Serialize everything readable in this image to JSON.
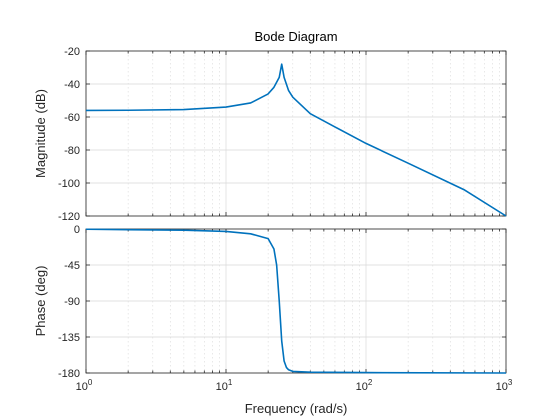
{
  "chart_data": [
    {
      "type": "line",
      "title": "Bode Diagram",
      "xlabel": "",
      "ylabel": "Magnitude (dB)",
      "xscale": "log",
      "xlim": [
        1,
        1000
      ],
      "ylim": [
        -120,
        -20
      ],
      "yticks": [
        -20,
        -40,
        -60,
        -80,
        -100,
        -120
      ],
      "grid": true,
      "series": [
        {
          "color": "#0072bd",
          "x": [
            1,
            2,
            5,
            10,
            15,
            20,
            22,
            24,
            25,
            26,
            28,
            30,
            40,
            60,
            100,
            200,
            500,
            1000
          ],
          "y": [
            -56,
            -55.9,
            -55.5,
            -54,
            -51.5,
            -46,
            -42,
            -36,
            -28,
            -36,
            -44,
            -48,
            -58,
            -66,
            -76,
            -88,
            -104,
            -120
          ]
        }
      ]
    },
    {
      "type": "line",
      "title": "",
      "xlabel": "Frequency  (rad/s)",
      "ylabel": "Phase (deg)",
      "xscale": "log",
      "xlim": [
        1,
        1000
      ],
      "ylim": [
        -180,
        0
      ],
      "yticks": [
        0,
        -45,
        -90,
        -135,
        -180
      ],
      "xtick_labels": [
        {
          "base": "10",
          "exp": "0",
          "value": 1
        },
        {
          "base": "10",
          "exp": "1",
          "value": 10
        },
        {
          "base": "10",
          "exp": "2",
          "value": 100
        },
        {
          "base": "10",
          "exp": "3",
          "value": 1000
        }
      ],
      "grid": true,
      "series": [
        {
          "color": "#0072bd",
          "x": [
            1,
            5,
            10,
            15,
            20,
            22,
            23,
            24,
            25,
            26,
            27,
            28,
            30,
            40,
            100,
            1000
          ],
          "y": [
            -0.3,
            -1.5,
            -3,
            -6,
            -12,
            -25,
            -45,
            -90,
            -140,
            -165,
            -173,
            -176,
            -178,
            -179,
            -179.5,
            -180
          ]
        }
      ]
    }
  ]
}
